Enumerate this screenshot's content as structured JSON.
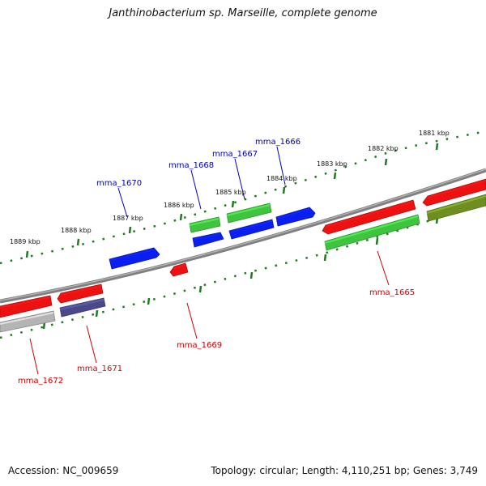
{
  "title": "Janthinobacterium sp. Marseille, complete genome",
  "footer": {
    "accession": "Accession: NC_009659",
    "summary": "Topology: circular; Length: 4,110,251 bp; Genes: 3,749"
  },
  "scale_ticks": [
    "1881 kbp",
    "1882 kbp",
    "1883 kbp",
    "1884 kbp",
    "1885 kbp",
    "1886 kbp",
    "1887 kbp",
    "1888 kbp",
    "1889 kbp"
  ],
  "gene_labels": {
    "forward": [
      "mma_1666",
      "mma_1667",
      "mma_1668",
      "mma_1670"
    ],
    "reverse": [
      "mma_1665",
      "mma_1669",
      "mma_1671",
      "mma_1672"
    ]
  },
  "colors": {
    "background": "#ffffff",
    "backbone": "#808080",
    "tick_green": "#1f7a1f",
    "forward_label": "#0000bb",
    "reverse_label": "#cc0000",
    "gene_blue": "#0a1ef0",
    "gene_green": "#3ec43e",
    "gene_red": "#ee1111",
    "gene_olive": "#6e8e22",
    "gene_navy": "#4a4a8a",
    "gene_gray": "#b4b4b4"
  }
}
